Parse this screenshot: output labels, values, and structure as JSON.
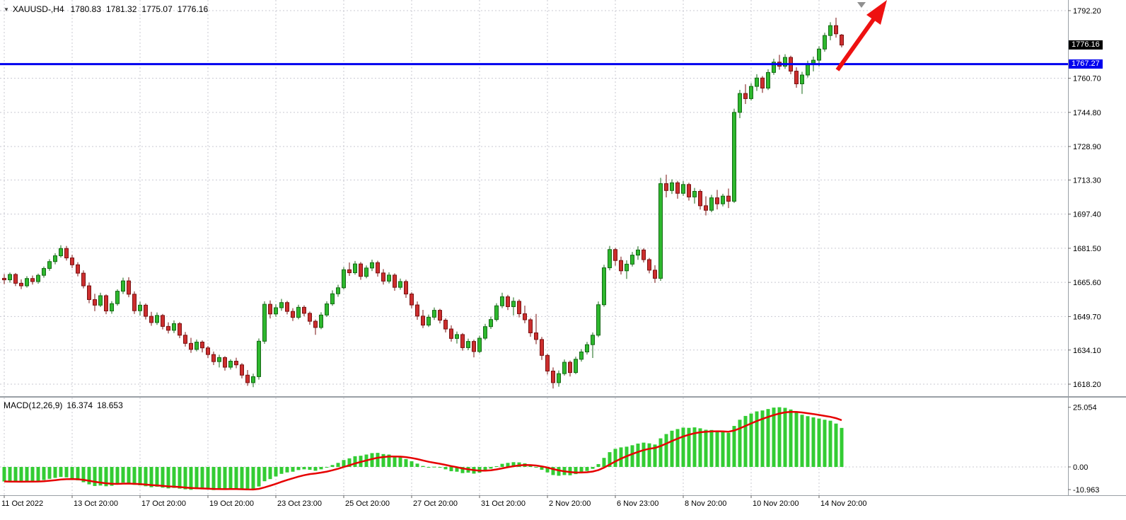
{
  "title": {
    "icon": "▼",
    "symbol": "XAUUSD-,H4",
    "open": "1780.83",
    "high": "1781.32",
    "low": "1775.07",
    "close": "1776.16"
  },
  "macd_panel": {
    "label": "MACD(12,26,9)",
    "macd_value": "16.374",
    "signal_value": "18.653"
  },
  "price_badges": {
    "current": "1776.16",
    "hline": "1767.27"
  },
  "chart_data": {
    "type": "candlestick",
    "symbol": "XAUUSD",
    "timeframe": "H4",
    "title": "XAUUSD-,H4 1780.83 1781.32 1775.07 1776.16",
    "price_axis": {
      "ticks": [
        1792.2,
        1760.7,
        1744.8,
        1728.9,
        1713.3,
        1697.4,
        1681.5,
        1665.6,
        1649.7,
        1634.1,
        1618.2
      ],
      "range": [
        1612.6,
        1797.1
      ]
    },
    "macd_axis": {
      "ticks": [
        "25.054",
        "0.00",
        "-10.963"
      ]
    },
    "hline": {
      "price": 1767.27,
      "color": "#0000ee"
    },
    "colors": {
      "bull": "#2eb82e",
      "bull_border": "#156915",
      "bear": "#cc2e2e",
      "bear_border": "#7a1111",
      "macd_hist": "#33cc33",
      "signal": "#e60000",
      "arrow": "#ee1111",
      "current_badge": "#000000"
    },
    "time_labels": [
      {
        "i": 0,
        "t": "11 Oct 2022"
      },
      {
        "i": 12,
        "t": "13 Oct 20:00"
      },
      {
        "i": 24,
        "t": "17 Oct 20:00"
      },
      {
        "i": 36,
        "t": "19 Oct 20:00"
      },
      {
        "i": 48,
        "t": "23 Oct 23:00"
      },
      {
        "i": 60,
        "t": "25 Oct 20:00"
      },
      {
        "i": 72,
        "t": "27 Oct 20:00"
      },
      {
        "i": 84,
        "t": "31 Oct 20:00"
      },
      {
        "i": 96,
        "t": "2 Nov 20:00"
      },
      {
        "i": 108,
        "t": "6 Nov 23:00"
      },
      {
        "i": 120,
        "t": "8 Nov 20:00"
      },
      {
        "i": 132,
        "t": "10 Nov 20:00"
      },
      {
        "i": 144,
        "t": "14 Nov 20:00"
      }
    ],
    "candles": [
      [
        1667.5,
        1669.5,
        1664.8,
        1666.8
      ],
      [
        1666.8,
        1670.2,
        1665.5,
        1669.3
      ],
      [
        1669.3,
        1670.0,
        1663.9,
        1665.2
      ],
      [
        1665.2,
        1667.0,
        1662.5,
        1664.0
      ],
      [
        1664.0,
        1668.5,
        1663.2,
        1667.4
      ],
      [
        1667.4,
        1668.8,
        1664.6,
        1666.0
      ],
      [
        1666.0,
        1669.7,
        1665.0,
        1668.9
      ],
      [
        1668.9,
        1673.0,
        1667.8,
        1672.1
      ],
      [
        1672.1,
        1676.4,
        1671.0,
        1675.3
      ],
      [
        1675.3,
        1679.2,
        1674.0,
        1678.0
      ],
      [
        1678.0,
        1682.9,
        1677.2,
        1681.4
      ],
      [
        1681.4,
        1682.6,
        1675.8,
        1677.0
      ],
      [
        1677.0,
        1678.5,
        1672.3,
        1673.8
      ],
      [
        1673.8,
        1675.0,
        1668.4,
        1669.9
      ],
      [
        1669.9,
        1671.2,
        1662.8,
        1664.0
      ],
      [
        1664.0,
        1665.5,
        1655.9,
        1657.6
      ],
      [
        1657.6,
        1660.3,
        1652.2,
        1655.0
      ],
      [
        1655.0,
        1660.8,
        1654.1,
        1659.4
      ],
      [
        1659.4,
        1660.0,
        1650.8,
        1652.3
      ],
      [
        1652.3,
        1656.9,
        1651.0,
        1655.7
      ],
      [
        1655.7,
        1662.4,
        1654.8,
        1661.5
      ],
      [
        1661.5,
        1667.8,
        1660.2,
        1666.3
      ],
      [
        1666.3,
        1668.0,
        1658.7,
        1660.1
      ],
      [
        1660.1,
        1661.4,
        1650.9,
        1652.4
      ],
      [
        1652.4,
        1656.6,
        1650.2,
        1655.0
      ],
      [
        1655.0,
        1655.8,
        1648.3,
        1649.8
      ],
      [
        1649.8,
        1651.9,
        1645.4,
        1646.9
      ],
      [
        1646.9,
        1651.6,
        1645.8,
        1650.2
      ],
      [
        1650.2,
        1650.9,
        1643.7,
        1645.1
      ],
      [
        1645.1,
        1647.0,
        1641.8,
        1643.3
      ],
      [
        1643.3,
        1647.9,
        1642.0,
        1646.4
      ],
      [
        1646.4,
        1647.1,
        1639.6,
        1641.0
      ],
      [
        1641.0,
        1642.5,
        1635.7,
        1637.2
      ],
      [
        1637.2,
        1639.8,
        1632.8,
        1634.4
      ],
      [
        1634.4,
        1639.0,
        1633.5,
        1637.8
      ],
      [
        1637.8,
        1638.6,
        1633.0,
        1635.1
      ],
      [
        1635.1,
        1636.0,
        1630.4,
        1632.0
      ],
      [
        1632.0,
        1633.4,
        1627.1,
        1628.7
      ],
      [
        1628.7,
        1631.9,
        1626.0,
        1630.6
      ],
      [
        1630.6,
        1631.2,
        1624.5,
        1626.1
      ],
      [
        1626.1,
        1629.8,
        1625.0,
        1628.9
      ],
      [
        1628.9,
        1630.5,
        1625.6,
        1627.2
      ],
      [
        1627.2,
        1628.0,
        1620.9,
        1622.4
      ],
      [
        1622.4,
        1624.8,
        1617.4,
        1618.9
      ],
      [
        1618.9,
        1623.1,
        1616.8,
        1621.7
      ],
      [
        1621.7,
        1639.5,
        1620.3,
        1638.2
      ],
      [
        1638.2,
        1656.8,
        1637.0,
        1655.4
      ],
      [
        1655.4,
        1657.2,
        1648.8,
        1650.9
      ],
      [
        1650.9,
        1655.5,
        1649.6,
        1653.8
      ],
      [
        1653.8,
        1657.9,
        1652.4,
        1656.2
      ],
      [
        1656.2,
        1657.0,
        1650.7,
        1652.1
      ],
      [
        1652.1,
        1653.6,
        1647.6,
        1649.3
      ],
      [
        1649.3,
        1655.2,
        1648.4,
        1654.0
      ],
      [
        1654.0,
        1654.9,
        1649.8,
        1651.2
      ],
      [
        1651.2,
        1652.0,
        1645.9,
        1647.5
      ],
      [
        1647.5,
        1648.3,
        1641.2,
        1644.6
      ],
      [
        1644.6,
        1651.7,
        1643.8,
        1650.4
      ],
      [
        1650.4,
        1656.8,
        1649.5,
        1655.6
      ],
      [
        1655.6,
        1661.9,
        1654.7,
        1660.3
      ],
      [
        1660.3,
        1664.5,
        1658.9,
        1663.1
      ],
      [
        1663.1,
        1672.8,
        1662.3,
        1671.5
      ],
      [
        1671.5,
        1674.9,
        1668.6,
        1670.1
      ],
      [
        1670.1,
        1675.6,
        1669.2,
        1674.2
      ],
      [
        1674.2,
        1675.1,
        1666.8,
        1668.4
      ],
      [
        1668.4,
        1673.5,
        1667.5,
        1672.3
      ],
      [
        1672.3,
        1676.2,
        1670.9,
        1674.8
      ],
      [
        1674.8,
        1675.7,
        1668.3,
        1670.0
      ],
      [
        1670.0,
        1671.8,
        1664.6,
        1666.2
      ],
      [
        1666.2,
        1670.3,
        1665.1,
        1669.0
      ],
      [
        1669.0,
        1669.8,
        1661.7,
        1663.3
      ],
      [
        1663.3,
        1667.4,
        1662.2,
        1666.0
      ],
      [
        1666.0,
        1666.9,
        1658.4,
        1660.2
      ],
      [
        1660.2,
        1661.0,
        1653.6,
        1655.1
      ],
      [
        1655.1,
        1656.7,
        1648.2,
        1649.9
      ],
      [
        1649.9,
        1652.8,
        1644.3,
        1645.7
      ],
      [
        1645.7,
        1650.6,
        1644.8,
        1649.4
      ],
      [
        1649.4,
        1653.9,
        1648.1,
        1652.6
      ],
      [
        1652.6,
        1653.3,
        1646.5,
        1648.0
      ],
      [
        1648.0,
        1648.9,
        1642.3,
        1643.9
      ],
      [
        1643.9,
        1645.6,
        1638.0,
        1639.5
      ],
      [
        1639.5,
        1642.7,
        1637.1,
        1641.3
      ],
      [
        1641.3,
        1642.0,
        1633.8,
        1635.2
      ],
      [
        1635.2,
        1639.4,
        1634.0,
        1638.1
      ],
      [
        1638.1,
        1638.9,
        1630.7,
        1633.4
      ],
      [
        1633.4,
        1640.8,
        1632.6,
        1639.6
      ],
      [
        1639.6,
        1646.3,
        1638.7,
        1645.0
      ],
      [
        1645.0,
        1649.7,
        1643.9,
        1648.3
      ],
      [
        1648.3,
        1655.9,
        1647.4,
        1654.7
      ],
      [
        1654.7,
        1660.8,
        1653.6,
        1658.9
      ],
      [
        1658.9,
        1659.8,
        1652.7,
        1654.3
      ],
      [
        1654.3,
        1658.6,
        1650.2,
        1656.8
      ],
      [
        1656.8,
        1657.7,
        1649.3,
        1651.0
      ],
      [
        1651.0,
        1654.8,
        1646.6,
        1648.2
      ],
      [
        1648.2,
        1649.0,
        1640.3,
        1642.1
      ],
      [
        1642.1,
        1650.9,
        1636.8,
        1639.0
      ],
      [
        1639.0,
        1640.2,
        1629.5,
        1631.6
      ],
      [
        1631.6,
        1632.4,
        1622.7,
        1624.3
      ],
      [
        1624.3,
        1626.0,
        1616.2,
        1618.9
      ],
      [
        1618.9,
        1624.6,
        1617.0,
        1623.1
      ],
      [
        1623.1,
        1629.7,
        1622.2,
        1628.4
      ],
      [
        1628.4,
        1629.2,
        1621.8,
        1623.6
      ],
      [
        1623.6,
        1631.0,
        1622.9,
        1629.8
      ],
      [
        1629.8,
        1634.5,
        1628.7,
        1633.2
      ],
      [
        1633.2,
        1637.9,
        1632.0,
        1636.6
      ],
      [
        1636.6,
        1642.3,
        1630.4,
        1641.0
      ],
      [
        1641.0,
        1656.7,
        1640.1,
        1655.2
      ],
      [
        1655.2,
        1673.8,
        1654.3,
        1672.4
      ],
      [
        1672.4,
        1682.6,
        1671.2,
        1680.9
      ],
      [
        1680.9,
        1681.7,
        1673.4,
        1675.8
      ],
      [
        1675.8,
        1677.6,
        1669.3,
        1671.0
      ],
      [
        1671.0,
        1675.9,
        1667.2,
        1674.1
      ],
      [
        1674.1,
        1679.8,
        1673.0,
        1678.3
      ],
      [
        1678.3,
        1682.4,
        1676.1,
        1680.7
      ],
      [
        1680.7,
        1681.5,
        1674.9,
        1676.2
      ],
      [
        1676.2,
        1677.0,
        1669.8,
        1671.3
      ],
      [
        1671.3,
        1673.6,
        1665.4,
        1667.5
      ],
      [
        1667.5,
        1714.3,
        1666.3,
        1711.6
      ],
      [
        1711.6,
        1715.8,
        1705.2,
        1708.4
      ],
      [
        1708.4,
        1713.6,
        1706.8,
        1712.0
      ],
      [
        1712.0,
        1712.9,
        1704.6,
        1707.1
      ],
      [
        1707.1,
        1712.8,
        1705.9,
        1711.2
      ],
      [
        1711.2,
        1712.0,
        1703.7,
        1705.4
      ],
      [
        1705.4,
        1709.6,
        1702.3,
        1708.0
      ],
      [
        1708.0,
        1708.9,
        1699.5,
        1701.3
      ],
      [
        1701.3,
        1705.7,
        1696.8,
        1699.2
      ],
      [
        1699.2,
        1706.4,
        1698.3,
        1705.0
      ],
      [
        1705.0,
        1708.7,
        1699.6,
        1702.2
      ],
      [
        1702.2,
        1706.9,
        1701.0,
        1705.8
      ],
      [
        1705.8,
        1709.3,
        1700.2,
        1703.4
      ],
      [
        1703.4,
        1746.5,
        1702.6,
        1744.8
      ],
      [
        1744.8,
        1755.3,
        1742.1,
        1753.6
      ],
      [
        1753.6,
        1757.9,
        1748.7,
        1751.2
      ],
      [
        1751.2,
        1758.4,
        1750.3,
        1756.9
      ],
      [
        1756.9,
        1762.6,
        1754.8,
        1760.8
      ],
      [
        1760.8,
        1761.7,
        1753.9,
        1756.1
      ],
      [
        1756.1,
        1764.9,
        1755.2,
        1763.4
      ],
      [
        1763.4,
        1769.8,
        1762.3,
        1768.2
      ],
      [
        1768.2,
        1771.6,
        1764.7,
        1766.3
      ],
      [
        1766.3,
        1771.9,
        1765.1,
        1770.4
      ],
      [
        1770.4,
        1771.2,
        1762.6,
        1764.0
      ],
      [
        1764.0,
        1765.8,
        1756.3,
        1758.1
      ],
      [
        1758.1,
        1763.7,
        1753.4,
        1762.2
      ],
      [
        1762.2,
        1768.9,
        1761.0,
        1767.5
      ],
      [
        1767.5,
        1770.8,
        1763.9,
        1769.1
      ],
      [
        1769.1,
        1775.6,
        1766.2,
        1774.3
      ],
      [
        1774.3,
        1781.9,
        1773.1,
        1780.6
      ],
      [
        1780.6,
        1786.8,
        1778.4,
        1785.2
      ],
      [
        1785.2,
        1788.9,
        1779.6,
        1781.4
      ],
      [
        1780.83,
        1781.32,
        1775.07,
        1776.16
      ]
    ],
    "macd": [
      -6.1,
      -6.3,
      -6.2,
      -6.4,
      -6.1,
      -6.2,
      -5.9,
      -5.5,
      -5.0,
      -4.6,
      -4.2,
      -4.4,
      -4.9,
      -5.6,
      -6.4,
      -7.3,
      -8.0,
      -7.8,
      -8.1,
      -7.9,
      -7.3,
      -6.6,
      -6.9,
      -7.5,
      -7.7,
      -8.1,
      -8.5,
      -8.3,
      -8.7,
      -9.0,
      -8.8,
      -9.1,
      -9.4,
      -9.6,
      -9.3,
      -9.4,
      -9.5,
      -9.7,
      -9.4,
      -9.6,
      -9.2,
      -9.3,
      -9.5,
      -9.8,
      -9.6,
      -8.2,
      -6.0,
      -5.1,
      -4.0,
      -2.9,
      -2.3,
      -2.0,
      -1.3,
      -1.0,
      -1.2,
      -1.6,
      -1.0,
      -0.2,
      0.8,
      1.7,
      2.9,
      3.6,
      4.5,
      4.7,
      5.2,
      5.8,
      5.9,
      5.4,
      5.2,
      4.5,
      4.1,
      3.3,
      2.4,
      1.4,
      0.4,
      -0.1,
      0.1,
      -0.3,
      -1.0,
      -1.8,
      -2.0,
      -2.6,
      -2.4,
      -2.8,
      -2.4,
      -1.6,
      -0.7,
      0.3,
      1.3,
      1.7,
      2.0,
      1.9,
      1.5,
      0.7,
      -0.1,
      -1.2,
      -2.3,
      -3.4,
      -3.7,
      -3.4,
      -3.5,
      -3.0,
      -2.4,
      -1.7,
      -0.8,
      1.2,
      3.8,
      6.2,
      7.6,
      8.2,
      8.5,
      9.1,
      9.8,
      10.2,
      9.9,
      9.4,
      12.0,
      13.8,
      15.2,
      15.9,
      16.5,
      16.4,
      16.6,
      16.2,
      15.6,
      15.5,
      15.1,
      14.8,
      14.3,
      17.2,
      19.8,
      21.4,
      22.4,
      23.3,
      23.7,
      24.3,
      24.9,
      25.05,
      24.8,
      24.1,
      22.9,
      21.9,
      21.3,
      20.8,
      20.3,
      19.8,
      19.4,
      18.2,
      16.374
    ]
  }
}
